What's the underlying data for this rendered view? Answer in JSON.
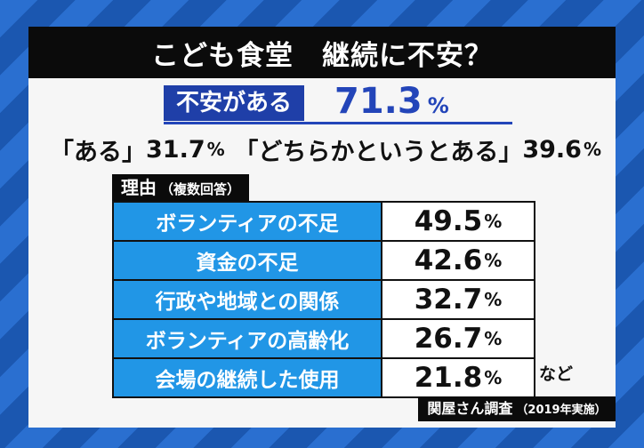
{
  "title": "こども食堂　継続に不安？",
  "headline": {
    "label": "不安がある",
    "value": "71.3",
    "unit": "%"
  },
  "breakdown": {
    "left_label": "「ある」",
    "left_value": "31.7",
    "right_label": "「どちらかというとある」",
    "right_value": "39.6",
    "unit": "%"
  },
  "reasons": {
    "label": "理由",
    "note": "（複数回答）",
    "rows": [
      {
        "label": "ボランティアの不足",
        "value": "49.5",
        "unit": "%"
      },
      {
        "label": "資金の不足",
        "value": "42.6",
        "unit": "%"
      },
      {
        "label": "行政や地域との関係",
        "value": "32.7",
        "unit": "%"
      },
      {
        "label": "ボランティアの高齢化",
        "value": "26.7",
        "unit": "%"
      },
      {
        "label": "会場の継続した使用",
        "value": "21.8",
        "unit": "%"
      }
    ],
    "etc": "など"
  },
  "source": {
    "label": "関屋さん調査",
    "note": "（2019年実施）"
  },
  "colors": {
    "title_bg": "#0b0b0b",
    "headline_blue": "#1f3fa8",
    "row_blue": "#2196e6",
    "background_blue": "#2a6fd0"
  }
}
